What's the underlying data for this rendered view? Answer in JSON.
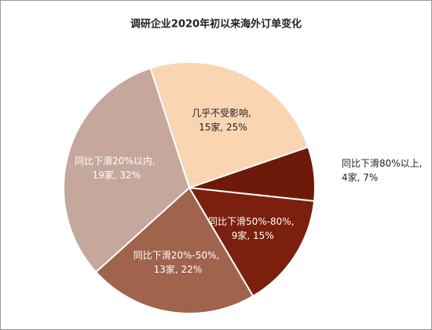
{
  "chart_data": {
    "type": "pie",
    "title": "调研企业2020年初以来海外订单变化",
    "categories": [
      "几乎不受影响",
      "同比下滑80%以上",
      "同比下滑50%-80%",
      "同比下滑20%-50%",
      "同比下滑20%以内"
    ],
    "values": [
      25,
      7,
      15,
      22,
      32
    ],
    "value_labels": [
      "25%",
      "7%",
      "15%",
      "22%",
      "32%"
    ],
    "counts": [
      15,
      4,
      9,
      13,
      19
    ],
    "count_labels": [
      "15家",
      "4家",
      "9家",
      "13家",
      "19家"
    ],
    "separator": ", ",
    "colors": [
      "#f9d5b2",
      "#6e1a0b",
      "#7b200e",
      "#a0634c",
      "#c5a79c"
    ]
  }
}
